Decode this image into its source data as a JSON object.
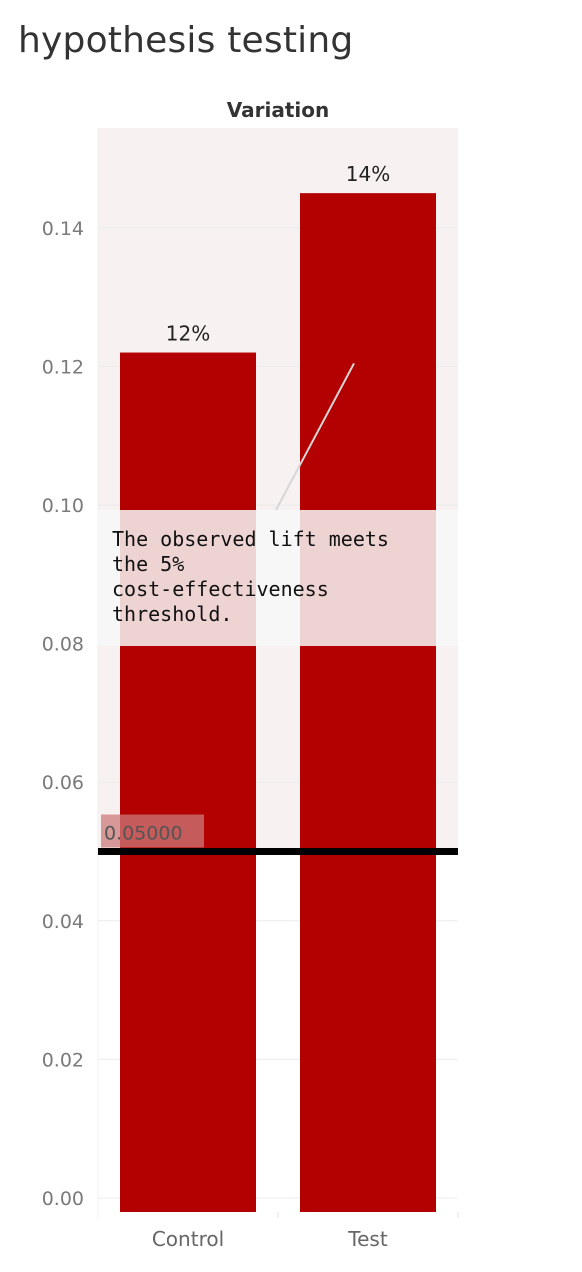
{
  "title": "hypothesis testing",
  "chart_data": {
    "type": "bar",
    "column_header": "Variation",
    "categories": [
      "Control",
      "Test"
    ],
    "values": [
      0.122,
      0.145
    ],
    "data_labels": [
      "12%",
      "14%"
    ],
    "ylim": [
      0,
      0.16
    ],
    "yticks": [
      0.0,
      0.02,
      0.04,
      0.06,
      0.08,
      0.1,
      0.12,
      0.14
    ],
    "ytick_labels": [
      "0.00",
      "0.02",
      "0.04",
      "0.06",
      "0.08",
      "0.10",
      "0.12",
      "0.14"
    ],
    "reference_line": {
      "value": 0.05,
      "label": "0.05000"
    },
    "annotation": {
      "lines": [
        "The observed lift meets",
        "the 5%",
        "cost-effectiveness",
        "threshold."
      ],
      "points_to_category": "Test",
      "points_to_value": 0.12
    },
    "grid": true,
    "colors": {
      "bar": "#b30000",
      "band": "#f8f1f1",
      "reference_line": "#000000",
      "label_bg": "#cc7a7a",
      "annotation_bg": "#f8f8f8"
    }
  }
}
